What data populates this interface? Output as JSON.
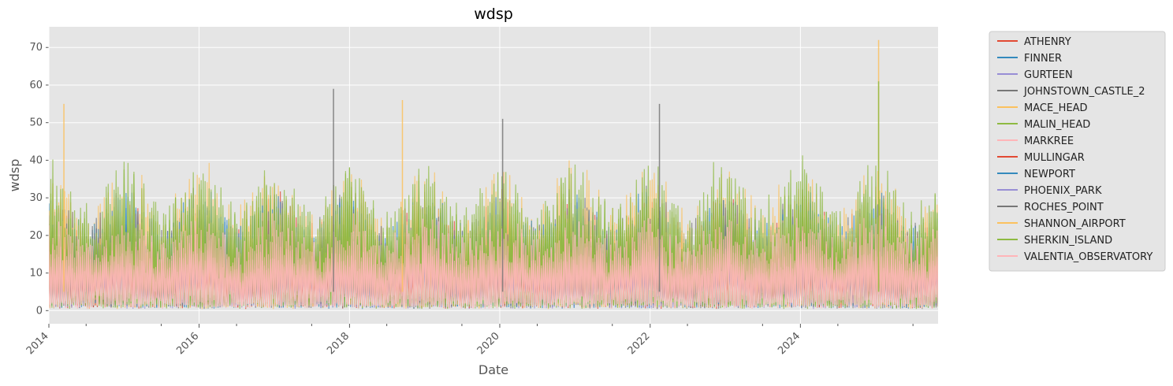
{
  "chart_data": {
    "type": "line",
    "title": "wdsp",
    "xlabel": "Date",
    "ylabel": "wdsp",
    "x_range": [
      "2014-01-01",
      "2025-10-31"
    ],
    "xlim": [
      "2014-01-01",
      "2025-10-31"
    ],
    "ylim": [
      -3.5,
      75.5
    ],
    "x_ticks": [
      "2014",
      "2016",
      "2018",
      "2020",
      "2022",
      "2024"
    ],
    "y_ticks": [
      0,
      10,
      20,
      30,
      40,
      50,
      60,
      70
    ],
    "grid": true,
    "style": "ggplot",
    "legend_position": "outside-right",
    "series": [
      {
        "name": "ATHENRY",
        "color": "#E24A33"
      },
      {
        "name": "FINNER",
        "color": "#348ABD"
      },
      {
        "name": "GURTEEN",
        "color": "#988ED5"
      },
      {
        "name": "JOHNSTOWN_CASTLE_2",
        "color": "#777777"
      },
      {
        "name": "MACE_HEAD",
        "color": "#FBC15E"
      },
      {
        "name": "MALIN_HEAD",
        "color": "#8EBA42"
      },
      {
        "name": "MARKREE",
        "color": "#FFB5B8"
      },
      {
        "name": "MULLINGAR",
        "color": "#E24A33"
      },
      {
        "name": "NEWPORT",
        "color": "#348ABD"
      },
      {
        "name": "PHOENIX_PARK",
        "color": "#988ED5"
      },
      {
        "name": "ROCHES_POINT",
        "color": "#777777"
      },
      {
        "name": "SHANNON_AIRPORT",
        "color": "#FBC15E"
      },
      {
        "name": "SHERKIN_ISLAND",
        "color": "#8EBA42"
      },
      {
        "name": "VALENTIA_OBSERVATORY",
        "color": "#FFB5B8"
      }
    ],
    "peaks": [
      {
        "series": "MACE_HEAD",
        "x": "2014-03",
        "y": 55
      },
      {
        "series": "ROCHES_POINT",
        "x": "2017-10",
        "y": 59
      },
      {
        "series": "MACE_HEAD",
        "x": "2018-09",
        "y": 56
      },
      {
        "series": "ROCHES_POINT",
        "x": "2020-01",
        "y": 51
      },
      {
        "series": "ROCHES_POINT",
        "x": "2022-02",
        "y": 55
      },
      {
        "series": "MACE_HEAD",
        "x": "2025-01",
        "y": 72
      },
      {
        "series": "SHERKIN_ISLAND",
        "x": "2025-01",
        "y": 61
      }
    ],
    "typical_range": {
      "min": 0,
      "max": 45,
      "bulk_upper": 30
    }
  }
}
